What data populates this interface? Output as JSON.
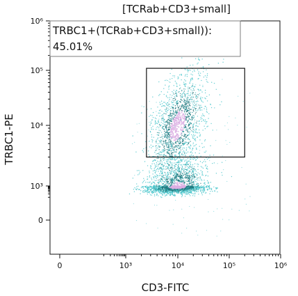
{
  "chart_data": {
    "type": "scatter",
    "title": "[TCRab+CD3+small]",
    "xlabel": "CD3-FITC",
    "ylabel": "TRBC1-PE",
    "x_ticks": [
      {
        "value": 0,
        "label": "0"
      },
      {
        "value": 1000,
        "label": "10³"
      },
      {
        "value": 10000,
        "label": "10⁴"
      },
      {
        "value": 100000,
        "label": "10⁵"
      },
      {
        "value": 1000000,
        "label": "10⁶"
      }
    ],
    "y_ticks": [
      {
        "value": 0,
        "label": "0"
      },
      {
        "value": 1000,
        "label": "10³"
      },
      {
        "value": 10000,
        "label": "10⁴"
      },
      {
        "value": 100000,
        "label": "10⁵"
      },
      {
        "value": 1000000,
        "label": "10⁶"
      }
    ],
    "xlim": [
      -500,
      1000000
    ],
    "ylim": [
      -500,
      1000000
    ],
    "scale": "biexponential",
    "grid": false,
    "gate": {
      "name": "TRBC1+(TCRab+CD3+small)):",
      "percentage": "45.01%",
      "x_range": [
        2500,
        200000
      ],
      "y_range": [
        3000,
        110000
      ]
    },
    "populations": [
      {
        "label_text": "",
        "center": [
          10000,
          10000
        ],
        "spread": [
          0.28,
          0.42
        ],
        "tilt": 0.55,
        "weight": 45
      },
      {
        "label_text": "",
        "center": [
          10000,
          800
        ],
        "spread": [
          0.3,
          0.3
        ],
        "tilt": 0.12,
        "weight": 55
      }
    ],
    "colors": {
      "low_density": "#3fc2c8",
      "mid_density": "#1b6e73",
      "high_density": "#dcaee3",
      "axis": "#111111",
      "gate": "#111111"
    }
  }
}
